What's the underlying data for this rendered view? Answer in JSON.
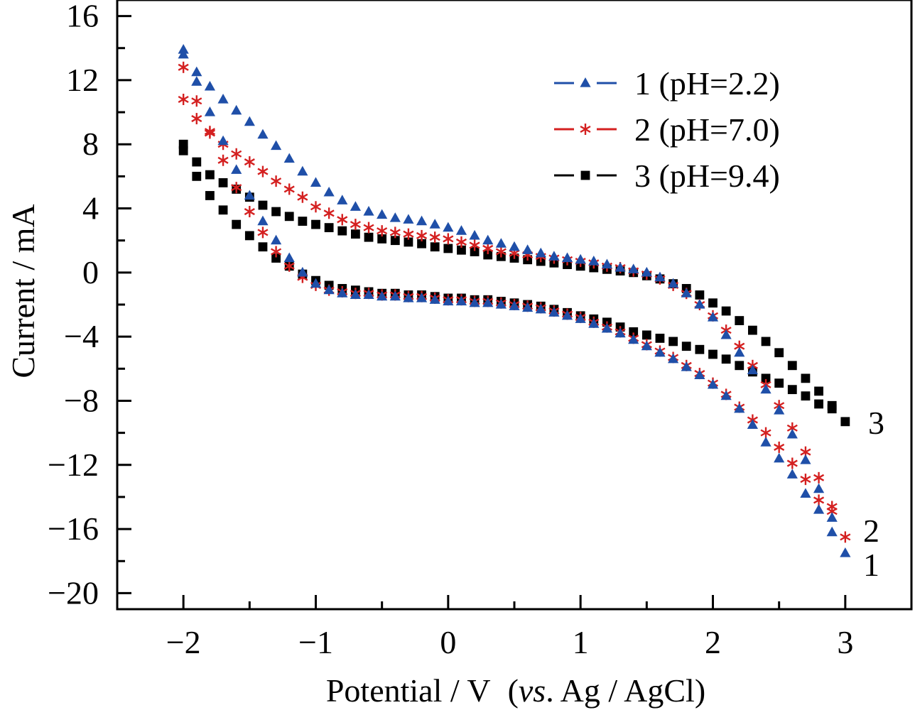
{
  "chart_data": {
    "type": "scatter",
    "xlabel": "Potential / V",
    "xlabel_italic": "vs",
    "xlabel_suffix": ". Ag / AgCl",
    "xlabel_paren_open": "(",
    "xlabel_paren_close": ")",
    "ylabel": "Current / mA",
    "xlim": [
      -2.5,
      3.5
    ],
    "ylim": [
      -21,
      17
    ],
    "x_ticks": [
      -2,
      -1,
      0,
      1,
      2,
      3
    ],
    "x_tick_labels": [
      "−2",
      "−1",
      "0",
      "1",
      "2",
      "3"
    ],
    "y_ticks": [
      16,
      12,
      8,
      4,
      0,
      -4,
      -8,
      -12,
      -16,
      -20
    ],
    "y_tick_labels": [
      "16",
      "12",
      "8",
      "4",
      "0",
      "−4",
      "−8",
      "−12",
      "−16",
      "−20"
    ],
    "grid": false,
    "legend_position": "top-right",
    "series": [
      {
        "name": "1 (pH=2.2)",
        "end_label": "1",
        "color": "#1f4fa8",
        "marker": "triangle",
        "upper": {
          "x": [
            -2.0,
            -1.9,
            -1.8,
            -1.7,
            -1.6,
            -1.5,
            -1.4,
            -1.3,
            -1.2,
            -1.1,
            -1.0,
            -0.9,
            -0.8,
            -0.7,
            -0.6,
            -0.5,
            -0.4,
            -0.3,
            -0.2,
            -0.1,
            0.0,
            0.1,
            0.2,
            0.3,
            0.4,
            0.5,
            0.6,
            0.7,
            0.8,
            0.9,
            1.0,
            1.1,
            1.2,
            1.3,
            1.4,
            1.5,
            1.6,
            1.7,
            1.8,
            1.9,
            2.0,
            2.1,
            2.2,
            2.3,
            2.4,
            2.5,
            2.6,
            2.7,
            2.8,
            2.9,
            3.0
          ],
          "y": [
            13.9,
            12.5,
            11.6,
            10.8,
            10.1,
            9.4,
            8.6,
            7.9,
            7.1,
            6.3,
            5.6,
            5.0,
            4.5,
            4.1,
            3.8,
            3.6,
            3.4,
            3.3,
            3.2,
            3.0,
            2.8,
            2.6,
            2.3,
            2.0,
            1.8,
            1.6,
            1.4,
            1.2,
            1.0,
            0.9,
            0.8,
            0.7,
            0.5,
            0.3,
            0.2,
            0.0,
            -0.3,
            -0.7,
            -1.3,
            -2.0,
            -2.8,
            -3.9,
            -5.0,
            -6.1,
            -7.3,
            -8.6,
            -10.1,
            -11.7,
            -13.5,
            -15.3,
            -17.5
          ]
        },
        "lower": {
          "x": [
            -2.0,
            -1.9,
            -1.8,
            -1.7,
            -1.6,
            -1.5,
            -1.4,
            -1.3,
            -1.2,
            -1.1,
            -1.0,
            -0.9,
            -0.8,
            -0.7,
            -0.6,
            -0.5,
            -0.4,
            -0.3,
            -0.2,
            -0.1,
            0.0,
            0.1,
            0.2,
            0.3,
            0.4,
            0.5,
            0.6,
            0.7,
            0.8,
            0.9,
            1.0,
            1.1,
            1.2,
            1.3,
            1.4,
            1.5,
            1.6,
            1.7,
            1.8,
            1.9,
            2.0,
            2.1,
            2.2,
            2.3,
            2.4,
            2.5,
            2.6,
            2.7,
            2.8,
            2.9
          ],
          "y": [
            13.6,
            11.9,
            10.0,
            8.2,
            6.4,
            4.8,
            3.2,
            2.0,
            0.9,
            0.0,
            -0.7,
            -1.1,
            -1.3,
            -1.4,
            -1.4,
            -1.5,
            -1.5,
            -1.6,
            -1.6,
            -1.7,
            -1.8,
            -1.8,
            -1.9,
            -1.9,
            -2.0,
            -2.1,
            -2.2,
            -2.3,
            -2.5,
            -2.7,
            -2.9,
            -3.2,
            -3.5,
            -3.8,
            -4.2,
            -4.6,
            -5.0,
            -5.4,
            -5.9,
            -6.4,
            -7.0,
            -7.7,
            -8.5,
            -9.5,
            -10.6,
            -11.6,
            -12.6,
            -13.8,
            -14.8,
            -16.2
          ]
        }
      },
      {
        "name": "2 (pH=7.0)",
        "end_label": "2",
        "color": "#d42020",
        "marker": "asterisk",
        "upper": {
          "x": [
            -2.0,
            -1.9,
            -1.8,
            -1.7,
            -1.6,
            -1.5,
            -1.4,
            -1.3,
            -1.2,
            -1.1,
            -1.0,
            -0.9,
            -0.8,
            -0.7,
            -0.6,
            -0.5,
            -0.4,
            -0.3,
            -0.2,
            -0.1,
            0.0,
            0.1,
            0.2,
            0.3,
            0.4,
            0.5,
            0.6,
            0.7,
            0.8,
            0.9,
            1.0,
            1.1,
            1.2,
            1.3,
            1.4,
            1.5,
            1.6,
            1.7,
            1.8,
            1.9,
            2.0,
            2.1,
            2.2,
            2.3,
            2.4,
            2.5,
            2.6,
            2.7,
            2.8,
            2.9,
            3.0
          ],
          "y": [
            12.8,
            10.7,
            8.8,
            8.0,
            7.4,
            6.9,
            6.3,
            5.7,
            5.2,
            4.7,
            4.1,
            3.7,
            3.3,
            3.0,
            2.8,
            2.6,
            2.5,
            2.4,
            2.3,
            2.2,
            2.1,
            1.9,
            1.7,
            1.5,
            1.3,
            1.2,
            1.1,
            1.0,
            0.9,
            0.8,
            0.7,
            0.6,
            0.4,
            0.3,
            0.1,
            -0.1,
            -0.4,
            -0.8,
            -1.3,
            -2.0,
            -2.7,
            -3.6,
            -4.6,
            -5.8,
            -7.0,
            -8.3,
            -9.7,
            -11.2,
            -12.8,
            -14.6,
            -16.5
          ]
        },
        "lower": {
          "x": [
            -2.0,
            -1.9,
            -1.8,
            -1.7,
            -1.6,
            -1.5,
            -1.4,
            -1.3,
            -1.2,
            -1.1,
            -1.0,
            -0.9,
            -0.8,
            -0.7,
            -0.6,
            -0.5,
            -0.4,
            -0.3,
            -0.2,
            -0.1,
            0.0,
            0.1,
            0.2,
            0.3,
            0.4,
            0.5,
            0.6,
            0.7,
            0.8,
            0.9,
            1.0,
            1.1,
            1.2,
            1.3,
            1.4,
            1.5,
            1.6,
            1.7,
            1.8,
            1.9,
            2.0,
            2.1,
            2.2,
            2.3,
            2.4,
            2.5,
            2.6,
            2.7,
            2.8,
            2.9
          ],
          "y": [
            10.8,
            9.6,
            8.7,
            7.0,
            5.3,
            3.8,
            2.5,
            1.3,
            0.4,
            -0.3,
            -0.8,
            -1.1,
            -1.2,
            -1.3,
            -1.3,
            -1.4,
            -1.4,
            -1.5,
            -1.5,
            -1.6,
            -1.7,
            -1.7,
            -1.8,
            -1.8,
            -1.9,
            -2.0,
            -2.1,
            -2.2,
            -2.4,
            -2.6,
            -2.8,
            -3.1,
            -3.4,
            -3.7,
            -4.1,
            -4.5,
            -4.9,
            -5.3,
            -5.8,
            -6.3,
            -6.9,
            -7.6,
            -8.4,
            -9.2,
            -10.0,
            -10.9,
            -11.9,
            -12.9,
            -14.2,
            -14.9
          ]
        }
      },
      {
        "name": "3 (pH=9.4)",
        "end_label": "3",
        "color": "#000000",
        "marker": "square",
        "upper": {
          "x": [
            -2.0,
            -1.9,
            -1.8,
            -1.7,
            -1.6,
            -1.5,
            -1.4,
            -1.3,
            -1.2,
            -1.1,
            -1.0,
            -0.9,
            -0.8,
            -0.7,
            -0.6,
            -0.5,
            -0.4,
            -0.3,
            -0.2,
            -0.1,
            0.0,
            0.1,
            0.2,
            0.3,
            0.4,
            0.5,
            0.6,
            0.7,
            0.8,
            0.9,
            1.0,
            1.1,
            1.2,
            1.3,
            1.4,
            1.5,
            1.6,
            1.7,
            1.8,
            1.9,
            2.0,
            2.1,
            2.2,
            2.3,
            2.4,
            2.5,
            2.6,
            2.7,
            2.8,
            2.9,
            3.0
          ],
          "y": [
            8.0,
            6.9,
            6.1,
            5.6,
            5.2,
            4.7,
            4.2,
            3.8,
            3.5,
            3.2,
            3.0,
            2.8,
            2.6,
            2.4,
            2.2,
            2.1,
            2.0,
            1.9,
            1.8,
            1.6,
            1.5,
            1.4,
            1.3,
            1.1,
            1.0,
            0.9,
            0.8,
            0.7,
            0.6,
            0.5,
            0.4,
            0.3,
            0.2,
            0.1,
            0.0,
            -0.2,
            -0.4,
            -0.7,
            -1.0,
            -1.4,
            -1.9,
            -2.4,
            -3.0,
            -3.6,
            -4.3,
            -5.0,
            -5.8,
            -6.6,
            -7.4,
            -8.3,
            -9.3
          ]
        },
        "lower": {
          "x": [
            -2.0,
            -1.9,
            -1.8,
            -1.7,
            -1.6,
            -1.5,
            -1.4,
            -1.3,
            -1.2,
            -1.1,
            -1.0,
            -0.9,
            -0.8,
            -0.7,
            -0.6,
            -0.5,
            -0.4,
            -0.3,
            -0.2,
            -0.1,
            0.0,
            0.1,
            0.2,
            0.3,
            0.4,
            0.5,
            0.6,
            0.7,
            0.8,
            0.9,
            1.0,
            1.1,
            1.2,
            1.3,
            1.4,
            1.5,
            1.6,
            1.7,
            1.8,
            1.9,
            2.0,
            2.1,
            2.2,
            2.3,
            2.4,
            2.5,
            2.6,
            2.7,
            2.8,
            2.9
          ],
          "y": [
            7.6,
            6.0,
            4.8,
            3.9,
            3.0,
            2.3,
            1.6,
            0.9,
            0.4,
            -0.1,
            -0.5,
            -0.8,
            -1.0,
            -1.1,
            -1.2,
            -1.3,
            -1.3,
            -1.4,
            -1.4,
            -1.5,
            -1.6,
            -1.6,
            -1.7,
            -1.7,
            -1.8,
            -1.9,
            -2.0,
            -2.1,
            -2.3,
            -2.5,
            -2.7,
            -2.9,
            -3.1,
            -3.4,
            -3.7,
            -3.9,
            -4.1,
            -4.3,
            -4.6,
            -4.8,
            -5.1,
            -5.4,
            -5.8,
            -6.2,
            -6.6,
            -6.9,
            -7.3,
            -7.7,
            -8.2,
            -8.5
          ]
        }
      }
    ]
  }
}
